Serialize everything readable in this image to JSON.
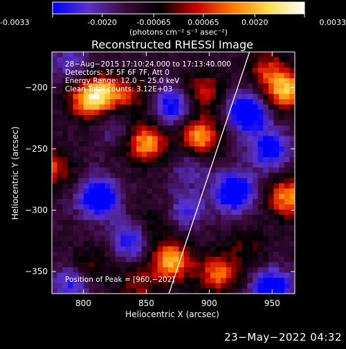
{
  "colorbar": {
    "ticks": [
      "-0.0033",
      "-0.0020",
      "-0.00065",
      "0.00065",
      "0.0020",
      "0.0033"
    ],
    "tick_values": [
      -0.0033,
      -0.002,
      -0.00065,
      0.00065,
      0.002,
      0.0033
    ],
    "range": [
      -0.0033,
      0.0033
    ],
    "units_label": "(photons cm⁻² s⁻¹ asec⁻²)",
    "colormap": [
      "#0000ff",
      "#5a32c8",
      "#3c0a3c",
      "#000000",
      "#c80000",
      "#ff7800",
      "#ffdc50",
      "#ffffff"
    ]
  },
  "chart_data": {
    "type": "heatmap",
    "title": "Reconstructed RHESSI Image",
    "xlabel": "Heliocentric X (arcsec)",
    "ylabel": "Heliocentric Y (arcsec)",
    "xlim": [
      775,
      968
    ],
    "ylim": [
      -368,
      -171
    ],
    "xticks": [
      800,
      850,
      900,
      950
    ],
    "yticks": [
      -200,
      -250,
      -300,
      -350
    ],
    "xtick_labels": [
      "800",
      "850",
      "900",
      "950"
    ],
    "ytick_labels": [
      "−200",
      "−250",
      "−300",
      "−350"
    ],
    "annotations": [
      "28−Aug−2015 17:10:24.000 to 17:13:40.000",
      "Detectors: 3F 5F 6F 7F, Att 0",
      "Energy Range: 12.0 − 25.0 keV",
      "Clean  Total counts: 3.12E+03"
    ],
    "peak_label": "Position of Peak = [960,−202]",
    "peak": [
      960,
      -202
    ],
    "limb_line": [
      [
        868,
        -368
      ],
      [
        932,
        -171
      ]
    ],
    "sources": [
      {
        "x": 803,
        "y": -210,
        "value": 0.0028
      },
      {
        "x": 818,
        "y": -205,
        "value": 0.0026
      },
      {
        "x": 840,
        "y": -208,
        "value": 0.0012
      },
      {
        "x": 850,
        "y": -245,
        "value": 0.003
      },
      {
        "x": 895,
        "y": -203,
        "value": 0.0018
      },
      {
        "x": 893,
        "y": -240,
        "value": 0.003
      },
      {
        "x": 960,
        "y": -202,
        "value": 0.0033
      },
      {
        "x": 945,
        "y": -184,
        "value": 0.0016
      },
      {
        "x": 962,
        "y": -290,
        "value": 0.0028
      },
      {
        "x": 775,
        "y": -265,
        "value": 0.002
      },
      {
        "x": 870,
        "y": -342,
        "value": 0.0032
      },
      {
        "x": 843,
        "y": -360,
        "value": 0.0014
      },
      {
        "x": 907,
        "y": -352,
        "value": 0.0024
      },
      {
        "x": 808,
        "y": -345,
        "value": 0.001
      },
      {
        "x": 857,
        "y": -310,
        "value": 0.0008
      },
      {
        "x": 930,
        "y": -330,
        "value": 0.001
      },
      {
        "x": 825,
        "y": -230,
        "value": -0.0009
      },
      {
        "x": 870,
        "y": -215,
        "value": -0.0022
      },
      {
        "x": 812,
        "y": -290,
        "value": -0.003
      },
      {
        "x": 920,
        "y": -285,
        "value": -0.0031
      },
      {
        "x": 882,
        "y": -300,
        "value": -0.0014
      },
      {
        "x": 930,
        "y": -220,
        "value": -0.0032
      },
      {
        "x": 836,
        "y": -325,
        "value": -0.0018
      },
      {
        "x": 950,
        "y": -365,
        "value": -0.0029
      },
      {
        "x": 790,
        "y": -362,
        "value": -0.0016
      },
      {
        "x": 948,
        "y": -250,
        "value": -0.0024
      },
      {
        "x": 790,
        "y": -180,
        "value": -0.0012
      },
      {
        "x": 885,
        "y": -265,
        "value": -0.001
      }
    ]
  },
  "footer": {
    "timestamp": "23−May−2022 04:32"
  }
}
